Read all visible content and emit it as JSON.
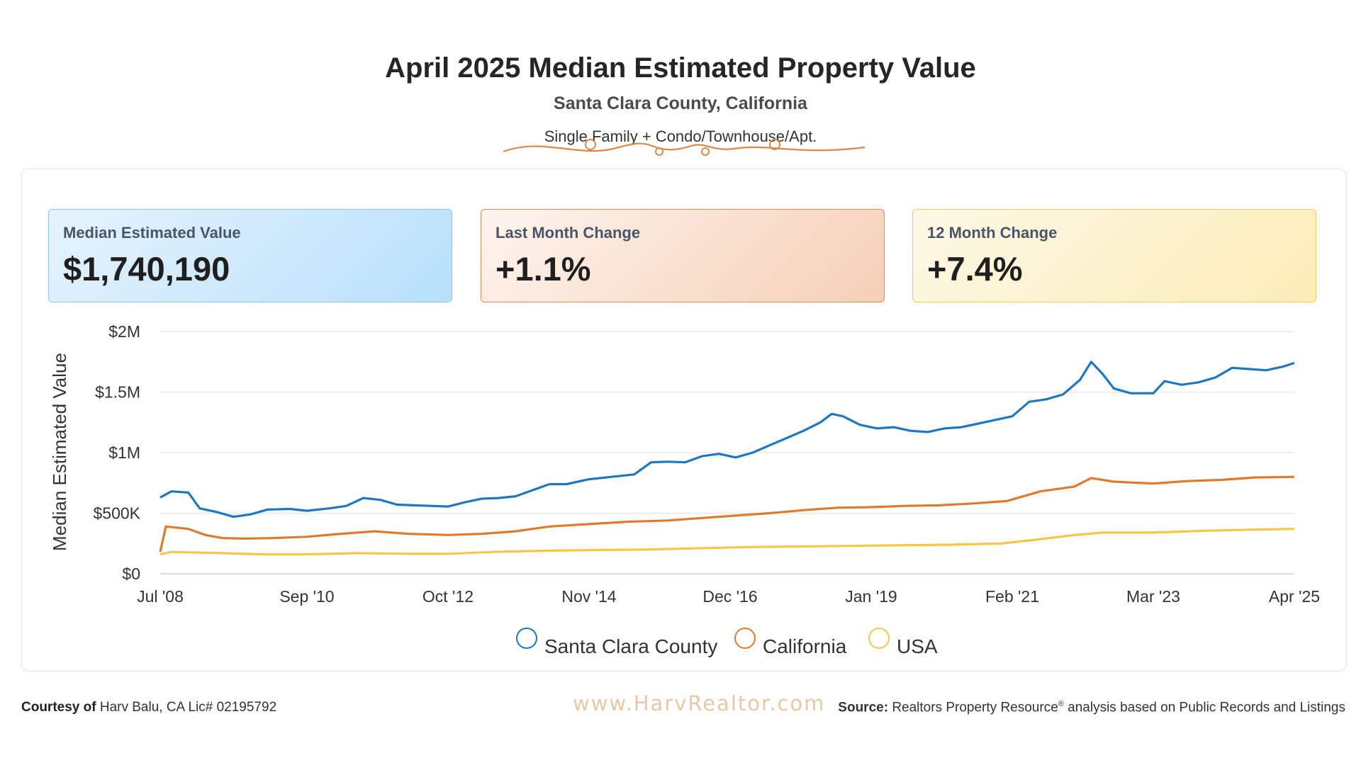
{
  "header": {
    "title": "April 2025 Median Estimated Property Value",
    "subtitle": "Santa Clara County, California",
    "property_types": "Single Family + Condo/Townhouse/Apt."
  },
  "kpis": [
    {
      "label": "Median Estimated Value",
      "value": "$1,740,190"
    },
    {
      "label": "Last Month Change",
      "value": "+1.1%"
    },
    {
      "label": "12 Month Change",
      "value": "+7.4%"
    }
  ],
  "chart_data": {
    "type": "line",
    "ylabel": "Median Estimated Value",
    "ylim": [
      0,
      2000000
    ],
    "y_ticks": [
      {
        "value": 0,
        "label": "$0"
      },
      {
        "value": 500000,
        "label": "$500K"
      },
      {
        "value": 1000000,
        "label": "$1M"
      },
      {
        "value": 1500000,
        "label": "$1.5M"
      },
      {
        "value": 2000000,
        "label": "$2M"
      }
    ],
    "x_range": [
      "2008-07",
      "2025-04"
    ],
    "x_ticks": [
      {
        "date": "2008-07",
        "label": "Jul '08"
      },
      {
        "date": "2010-09",
        "label": "Sep '10"
      },
      {
        "date": "2012-10",
        "label": "Oct '12"
      },
      {
        "date": "2014-11",
        "label": "Nov '14"
      },
      {
        "date": "2016-12",
        "label": "Dec '16"
      },
      {
        "date": "2019-01",
        "label": "Jan '19"
      },
      {
        "date": "2021-02",
        "label": "Feb '21"
      },
      {
        "date": "2023-03",
        "label": "Mar '23"
      },
      {
        "date": "2025-04",
        "label": "Apr '25"
      }
    ],
    "grid": true,
    "legend_position": "bottom",
    "series": [
      {
        "name": "Santa Clara County",
        "color": "#1f77c0",
        "points": [
          [
            "2008-07",
            630000
          ],
          [
            "2008-09",
            680000
          ],
          [
            "2008-12",
            670000
          ],
          [
            "2009-02",
            540000
          ],
          [
            "2009-05",
            510000
          ],
          [
            "2009-08",
            470000
          ],
          [
            "2009-11",
            490000
          ],
          [
            "2010-02",
            530000
          ],
          [
            "2010-06",
            535000
          ],
          [
            "2010-09",
            520000
          ],
          [
            "2011-01",
            540000
          ],
          [
            "2011-04",
            560000
          ],
          [
            "2011-07",
            625000
          ],
          [
            "2011-10",
            610000
          ],
          [
            "2012-01",
            570000
          ],
          [
            "2012-04",
            565000
          ],
          [
            "2012-07",
            560000
          ],
          [
            "2012-10",
            555000
          ],
          [
            "2013-01",
            590000
          ],
          [
            "2013-04",
            620000
          ],
          [
            "2013-07",
            625000
          ],
          [
            "2013-10",
            640000
          ],
          [
            "2014-01",
            690000
          ],
          [
            "2014-04",
            740000
          ],
          [
            "2014-07",
            740000
          ],
          [
            "2014-11",
            780000
          ],
          [
            "2015-03",
            800000
          ],
          [
            "2015-07",
            820000
          ],
          [
            "2015-10",
            920000
          ],
          [
            "2016-01",
            925000
          ],
          [
            "2016-04",
            920000
          ],
          [
            "2016-07",
            970000
          ],
          [
            "2016-10",
            990000
          ],
          [
            "2017-01",
            960000
          ],
          [
            "2017-04",
            1000000
          ],
          [
            "2017-07",
            1060000
          ],
          [
            "2017-10",
            1120000
          ],
          [
            "2018-01",
            1180000
          ],
          [
            "2018-04",
            1250000
          ],
          [
            "2018-06",
            1320000
          ],
          [
            "2018-08",
            1300000
          ],
          [
            "2018-11",
            1230000
          ],
          [
            "2019-02",
            1200000
          ],
          [
            "2019-05",
            1210000
          ],
          [
            "2019-08",
            1180000
          ],
          [
            "2019-11",
            1170000
          ],
          [
            "2020-02",
            1200000
          ],
          [
            "2020-05",
            1210000
          ],
          [
            "2020-08",
            1240000
          ],
          [
            "2020-11",
            1270000
          ],
          [
            "2021-02",
            1300000
          ],
          [
            "2021-05",
            1420000
          ],
          [
            "2021-08",
            1440000
          ],
          [
            "2021-11",
            1480000
          ],
          [
            "2022-02",
            1600000
          ],
          [
            "2022-04",
            1750000
          ],
          [
            "2022-06",
            1650000
          ],
          [
            "2022-08",
            1530000
          ],
          [
            "2022-11",
            1490000
          ],
          [
            "2023-03",
            1490000
          ],
          [
            "2023-05",
            1590000
          ],
          [
            "2023-08",
            1560000
          ],
          [
            "2023-11",
            1580000
          ],
          [
            "2024-02",
            1620000
          ],
          [
            "2024-05",
            1700000
          ],
          [
            "2024-08",
            1690000
          ],
          [
            "2024-11",
            1680000
          ],
          [
            "2025-02",
            1710000
          ],
          [
            "2025-04",
            1740190
          ]
        ]
      },
      {
        "name": "California",
        "color": "#e07b2e",
        "points": [
          [
            "2008-07",
            180000
          ],
          [
            "2008-08",
            390000
          ],
          [
            "2008-12",
            370000
          ],
          [
            "2009-03",
            320000
          ],
          [
            "2009-06",
            295000
          ],
          [
            "2009-10",
            290000
          ],
          [
            "2010-03",
            295000
          ],
          [
            "2010-09",
            305000
          ],
          [
            "2011-03",
            330000
          ],
          [
            "2011-09",
            350000
          ],
          [
            "2012-03",
            330000
          ],
          [
            "2012-10",
            320000
          ],
          [
            "2013-04",
            330000
          ],
          [
            "2013-10",
            350000
          ],
          [
            "2014-04",
            390000
          ],
          [
            "2014-11",
            410000
          ],
          [
            "2015-06",
            430000
          ],
          [
            "2016-01",
            440000
          ],
          [
            "2016-07",
            460000
          ],
          [
            "2017-01",
            480000
          ],
          [
            "2017-07",
            500000
          ],
          [
            "2018-01",
            525000
          ],
          [
            "2018-07",
            545000
          ],
          [
            "2019-01",
            550000
          ],
          [
            "2019-07",
            560000
          ],
          [
            "2020-01",
            565000
          ],
          [
            "2020-07",
            580000
          ],
          [
            "2021-01",
            600000
          ],
          [
            "2021-07",
            680000
          ],
          [
            "2022-01",
            720000
          ],
          [
            "2022-04",
            790000
          ],
          [
            "2022-08",
            760000
          ],
          [
            "2023-03",
            745000
          ],
          [
            "2023-09",
            765000
          ],
          [
            "2024-03",
            775000
          ],
          [
            "2024-09",
            795000
          ],
          [
            "2025-04",
            800000
          ]
        ]
      },
      {
        "name": "USA",
        "color": "#f6c745",
        "points": [
          [
            "2008-07",
            160000
          ],
          [
            "2008-09",
            180000
          ],
          [
            "2009-06",
            170000
          ],
          [
            "2010-01",
            160000
          ],
          [
            "2010-09",
            160000
          ],
          [
            "2011-06",
            170000
          ],
          [
            "2012-03",
            165000
          ],
          [
            "2012-10",
            165000
          ],
          [
            "2013-06",
            180000
          ],
          [
            "2014-03",
            190000
          ],
          [
            "2014-11",
            195000
          ],
          [
            "2015-09",
            200000
          ],
          [
            "2016-06",
            210000
          ],
          [
            "2017-03",
            220000
          ],
          [
            "2017-12",
            225000
          ],
          [
            "2018-09",
            230000
          ],
          [
            "2019-06",
            235000
          ],
          [
            "2020-03",
            240000
          ],
          [
            "2020-12",
            250000
          ],
          [
            "2021-06",
            280000
          ],
          [
            "2022-01",
            320000
          ],
          [
            "2022-06",
            340000
          ],
          [
            "2023-03",
            340000
          ],
          [
            "2023-12",
            355000
          ],
          [
            "2024-09",
            365000
          ],
          [
            "2025-04",
            370000
          ]
        ]
      }
    ]
  },
  "footer": {
    "courtesy_label": "Courtesy of",
    "courtesy_text": "Harv Balu, CA Lic# 02195792",
    "watermark": "www.HarvRealtor.com",
    "source_label": "Source:",
    "source_text_1": "Realtors Property Resource",
    "source_reg": "®",
    "source_text_2": " analysis based on Public Records and Listings"
  }
}
